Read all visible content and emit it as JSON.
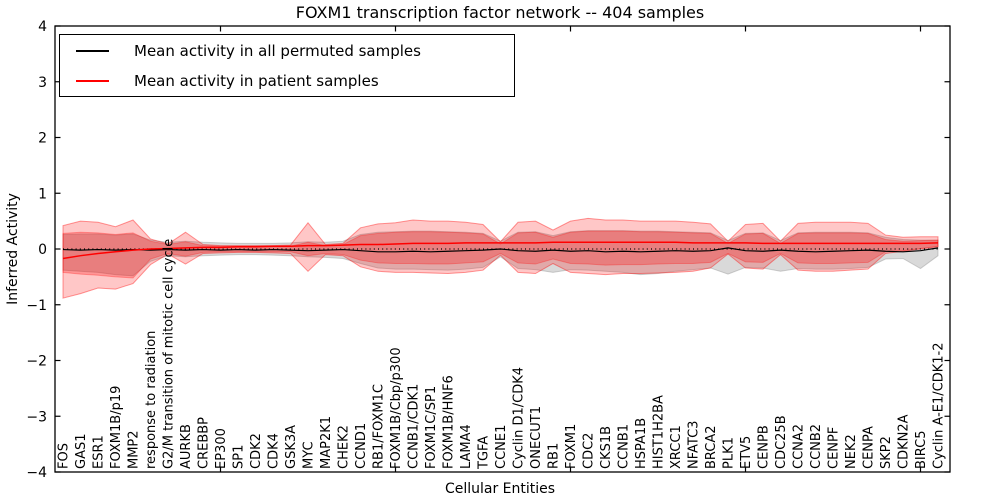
{
  "figure": {
    "title": "FOXM1 transcription factor network -- 404 samples",
    "x_axis_label": "Cellular Entities",
    "y_axis_label": "Inferred Activity"
  },
  "legend": {
    "entries": [
      {
        "label": "Mean activity in all permuted samples",
        "color": "#000000"
      },
      {
        "label": "Mean activity in patient samples",
        "color": "#ff0000"
      }
    ]
  },
  "chart_data": {
    "type": "line",
    "title": "FOXM1 transcription factor network -- 404 samples",
    "xlabel": "Cellular Entities",
    "ylabel": "Inferred Activity",
    "ylim": [
      -4,
      4
    ],
    "grid": false,
    "legend_position": "upper left",
    "y_ticks": [
      4,
      3,
      2,
      1,
      0,
      -1,
      -2,
      -3,
      -4
    ],
    "x_major_tick_indices": [
      9,
      19,
      29,
      39,
      49
    ],
    "zero_line": {
      "y": 0,
      "style": "dotted",
      "color": "#000000"
    },
    "colors": {
      "permuted_band_fill": "rgba(128,128,128,0.30)",
      "patient_band_outer_fill": "rgba(255,0,0,0.22)",
      "patient_band_inner_fill": "rgba(255,0,0,0.25)",
      "permuted_mean_line": "#000000",
      "patient_mean_line": "#ff0000"
    },
    "categories": [
      "FOS",
      "GAS1",
      "ESR1",
      "FOXM1B/p19",
      "MMP2",
      "response to radiation",
      "G2/M transition of mitotic cell cycle",
      "AURKB",
      "CREBBP",
      "EP300",
      "SP1",
      "CDK2",
      "CDK4",
      "GSK3A",
      "MYC",
      "MAP2K1",
      "CHEK2",
      "CCND1",
      "RB1/FOXM1C",
      "FOXM1B/Cbp/p300",
      "CCNB1/CDK1",
      "FOXM1C/SP1",
      "FOXM1B/HNF6",
      "LAMA4",
      "TGFA",
      "CCNE1",
      "Cyclin D1/CDK4",
      "ONECUT1",
      "RB1",
      "FOXM1",
      "CDC2",
      "CKS1B",
      "CCNB1",
      "HSPA1B",
      "HIST1H2BA",
      "XRCC1",
      "NFATC3",
      "BRCA2",
      "PLK1",
      "ETV5",
      "CENPB",
      "CDC25B",
      "CCNA2",
      "CCNB2",
      "CENPF",
      "NEK2",
      "CENPA",
      "SKP2",
      "CDKN2A",
      "BIRC5",
      "Cyclin A-E1/CDK1-2"
    ],
    "series": [
      {
        "name": "Mean activity in all permuted samples",
        "color": "#000000",
        "values": [
          -0.01,
          -0.02,
          -0.01,
          -0.02,
          -0.01,
          -0.02,
          -0.01,
          -0.02,
          -0.01,
          -0.02,
          -0.01,
          -0.02,
          -0.01,
          -0.02,
          -0.03,
          -0.02,
          -0.01,
          -0.03,
          -0.05,
          -0.05,
          -0.04,
          -0.05,
          -0.04,
          -0.03,
          -0.02,
          0,
          -0.03,
          -0.04,
          -0.02,
          -0.04,
          -0.03,
          -0.05,
          -0.04,
          -0.05,
          -0.04,
          -0.03,
          -0.04,
          -0.03,
          0.02,
          -0.03,
          -0.04,
          -0.02,
          -0.04,
          -0.05,
          -0.04,
          -0.03,
          -0.02,
          -0.04,
          -0.05,
          -0.03,
          0.02
        ]
      },
      {
        "name": "Mean activity in patient samples",
        "color": "#ff0000",
        "values": [
          -0.17,
          -0.12,
          -0.08,
          -0.05,
          -0.02,
          0,
          0.01,
          0.02,
          0.03,
          0.03,
          0.04,
          0.04,
          0.05,
          0.05,
          0.06,
          0.06,
          0.07,
          0.08,
          0.08,
          0.09,
          0.1,
          0.1,
          0.1,
          0.11,
          0.11,
          0.11,
          0.11,
          0.11,
          0.12,
          0.12,
          0.12,
          0.12,
          0.12,
          0.12,
          0.12,
          0.12,
          0.11,
          0.11,
          0.11,
          0.11,
          0.1,
          0.1,
          0.1,
          0.1,
          0.1,
          0.1,
          0.1,
          0.1,
          0.1,
          0.1,
          0.11
        ]
      }
    ],
    "bands": [
      {
        "name": "permuted-samples-range",
        "upper": [
          0.26,
          0.27,
          0.27,
          0.25,
          0.27,
          0.16,
          0.12,
          0.14,
          0.12,
          0.11,
          0.1,
          0.1,
          0.1,
          0.11,
          0.13,
          0.12,
          0.14,
          0.26,
          0.3,
          0.31,
          0.32,
          0.32,
          0.31,
          0.3,
          0.28,
          0.14,
          0.3,
          0.31,
          0.24,
          0.31,
          0.33,
          0.33,
          0.33,
          0.32,
          0.32,
          0.31,
          0.3,
          0.29,
          0.15,
          0.28,
          0.29,
          0.15,
          0.29,
          0.3,
          0.3,
          0.3,
          0.29,
          0.21,
          0.17,
          0.16,
          0.16
        ],
        "lower": [
          -0.38,
          -0.4,
          -0.42,
          -0.46,
          -0.48,
          -0.22,
          -0.12,
          -0.14,
          -0.12,
          -0.11,
          -0.1,
          -0.1,
          -0.11,
          -0.12,
          -0.14,
          -0.15,
          -0.17,
          -0.26,
          -0.34,
          -0.36,
          -0.36,
          -0.37,
          -0.38,
          -0.36,
          -0.33,
          -0.14,
          -0.35,
          -0.37,
          -0.42,
          -0.37,
          -0.38,
          -0.4,
          -0.42,
          -0.46,
          -0.44,
          -0.4,
          -0.37,
          -0.34,
          -0.45,
          -0.33,
          -0.34,
          -0.4,
          -0.35,
          -0.36,
          -0.36,
          -0.35,
          -0.33,
          -0.18,
          -0.17,
          -0.35,
          -0.12
        ]
      },
      {
        "name": "patient-samples-range-outer",
        "upper": [
          0.42,
          0.5,
          0.48,
          0.4,
          0.52,
          0.18,
          0.09,
          0.3,
          0.08,
          0.06,
          0.06,
          0.06,
          0.06,
          0.07,
          0.47,
          0.08,
          0.1,
          0.38,
          0.45,
          0.47,
          0.52,
          0.5,
          0.5,
          0.48,
          0.44,
          0.13,
          0.48,
          0.5,
          0.34,
          0.5,
          0.55,
          0.52,
          0.52,
          0.5,
          0.5,
          0.5,
          0.48,
          0.45,
          0.14,
          0.44,
          0.46,
          0.14,
          0.46,
          0.48,
          0.48,
          0.48,
          0.46,
          0.25,
          0.21,
          0.22,
          0.22
        ],
        "lower": [
          -0.88,
          -0.8,
          -0.7,
          -0.72,
          -0.62,
          -0.28,
          -0.09,
          -0.27,
          -0.08,
          -0.07,
          -0.06,
          -0.06,
          -0.07,
          -0.08,
          -0.4,
          -0.1,
          -0.12,
          -0.32,
          -0.4,
          -0.42,
          -0.42,
          -0.43,
          -0.44,
          -0.42,
          -0.38,
          -0.11,
          -0.42,
          -0.44,
          -0.26,
          -0.42,
          -0.44,
          -0.46,
          -0.44,
          -0.44,
          -0.43,
          -0.42,
          -0.4,
          -0.34,
          -0.09,
          -0.34,
          -0.36,
          -0.1,
          -0.38,
          -0.4,
          -0.4,
          -0.38,
          -0.36,
          -0.08,
          -0.04,
          0,
          0.04
        ]
      },
      {
        "name": "patient-samples-range-inner",
        "upper": [
          0.28,
          0.3,
          0.29,
          0.26,
          0.29,
          0.14,
          0.08,
          0.13,
          0.06,
          0.05,
          0.05,
          0.05,
          0.05,
          0.05,
          0.12,
          0.06,
          0.08,
          0.24,
          0.28,
          0.3,
          0.31,
          0.31,
          0.3,
          0.29,
          0.27,
          0.09,
          0.29,
          0.3,
          0.21,
          0.3,
          0.32,
          0.32,
          0.32,
          0.31,
          0.31,
          0.3,
          0.29,
          0.28,
          0.1,
          0.27,
          0.28,
          0.1,
          0.28,
          0.29,
          0.29,
          0.29,
          0.28,
          0.17,
          0.14,
          0.15,
          0.16
        ],
        "lower": [
          -0.42,
          -0.45,
          -0.47,
          -0.5,
          -0.52,
          -0.18,
          -0.08,
          -0.13,
          -0.06,
          -0.05,
          -0.05,
          -0.05,
          -0.05,
          -0.05,
          -0.12,
          -0.08,
          -0.1,
          -0.2,
          -0.25,
          -0.26,
          -0.26,
          -0.27,
          -0.27,
          -0.25,
          -0.23,
          -0.08,
          -0.25,
          -0.27,
          -0.18,
          -0.26,
          -0.27,
          -0.29,
          -0.28,
          -0.28,
          -0.27,
          -0.26,
          -0.26,
          -0.24,
          -0.08,
          -0.23,
          -0.24,
          -0.08,
          -0.25,
          -0.26,
          -0.26,
          -0.25,
          -0.24,
          -0.05,
          -0.03,
          0.01,
          0.05
        ]
      }
    ]
  }
}
